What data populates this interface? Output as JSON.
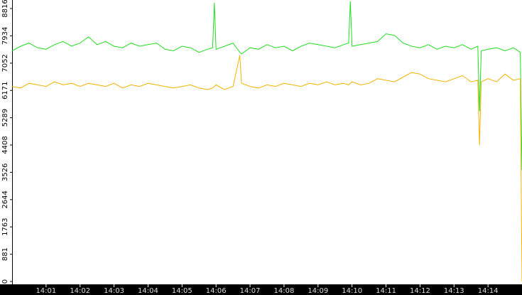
{
  "chart_data": {
    "type": "line",
    "x": [
      0,
      0.25,
      0.5,
      0.75,
      1,
      1.25,
      1.5,
      1.75,
      2,
      2.25,
      2.5,
      2.75,
      3,
      3.25,
      3.5,
      3.75,
      4,
      4.25,
      4.5,
      4.75,
      5,
      5.25,
      5.5,
      5.75,
      5.9,
      5.95,
      6,
      6.25,
      6.5,
      6.7,
      6.75,
      7,
      7.25,
      7.5,
      7.75,
      8,
      8.25,
      8.5,
      8.75,
      9,
      9.25,
      9.5,
      9.75,
      9.9,
      9.95,
      10,
      10.25,
      10.5,
      10.75,
      11,
      11.25,
      11.5,
      11.75,
      12,
      12.25,
      12.5,
      12.75,
      13,
      13.25,
      13.5,
      13.7,
      13.75,
      13.8,
      14,
      14.25,
      14.5,
      14.75,
      14.95,
      15
    ],
    "series": [
      {
        "color": "#22dd22",
        "values": [
          7450,
          7600,
          7700,
          7550,
          7500,
          7650,
          7750,
          7600,
          7700,
          7900,
          7650,
          7750,
          7600,
          7550,
          7700,
          7600,
          7650,
          7700,
          7500,
          7450,
          7600,
          7550,
          7400,
          7500,
          7550,
          9000,
          7500,
          7600,
          7700,
          7400,
          7350,
          7550,
          7500,
          7650,
          7550,
          7600,
          7450,
          7600,
          7700,
          7650,
          7600,
          7550,
          7650,
          7700,
          9050,
          7600,
          7650,
          7700,
          7750,
          8000,
          7950,
          7700,
          7600,
          7550,
          7650,
          7500,
          7600,
          7550,
          7650,
          7500,
          7600,
          5500,
          7450,
          7500,
          7550,
          7450,
          7550,
          7400,
          3600
        ]
      },
      {
        "color": "#f0b400",
        "values": [
          6300,
          6250,
          6400,
          6350,
          6300,
          6450,
          6350,
          6400,
          6300,
          6400,
          6350,
          6300,
          6400,
          6250,
          6350,
          6300,
          6400,
          6350,
          6300,
          6250,
          6300,
          6350,
          6250,
          6200,
          6250,
          6300,
          6350,
          6200,
          6300,
          7300,
          6400,
          6300,
          6250,
          6350,
          6300,
          6400,
          6350,
          6300,
          6400,
          6350,
          6450,
          6350,
          6400,
          6350,
          6400,
          6450,
          6350,
          6400,
          6550,
          6500,
          6450,
          6600,
          6750,
          6700,
          6550,
          6500,
          6450,
          6550,
          6650,
          6450,
          6500,
          4400,
          6450,
          6550,
          6450,
          6700,
          6500,
          6550,
          0
        ]
      }
    ],
    "xlim": [
      0,
      15
    ],
    "xticks": [
      {
        "value": 1,
        "label": "14:01"
      },
      {
        "value": 2,
        "label": "14:02"
      },
      {
        "value": 3,
        "label": "14:03"
      },
      {
        "value": 4,
        "label": "14:04"
      },
      {
        "value": 5,
        "label": "14:05"
      },
      {
        "value": 6,
        "label": "14:06"
      },
      {
        "value": 7,
        "label": "14:07"
      },
      {
        "value": 8,
        "label": "14:08"
      },
      {
        "value": 9,
        "label": "14:09"
      },
      {
        "value": 10,
        "label": "14:10"
      },
      {
        "value": 11,
        "label": "14:11"
      },
      {
        "value": 12,
        "label": "14:12"
      },
      {
        "value": 13,
        "label": "14:13"
      },
      {
        "value": 14,
        "label": "14:14"
      }
    ],
    "ylim": [
      0,
      9000
    ],
    "yticks": [
      0,
      881,
      1763,
      2644,
      3526,
      4408,
      5289,
      6171,
      7052,
      7934,
      8816
    ]
  }
}
